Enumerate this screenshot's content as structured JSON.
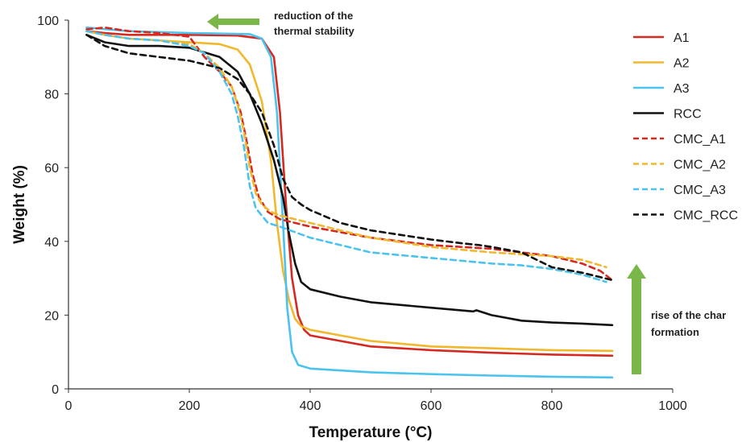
{
  "chart_data": {
    "type": "line",
    "title": "",
    "xlabel": "Temperature (°C)",
    "ylabel": "Weight (%)",
    "xlim": [
      0,
      1000
    ],
    "ylim": [
      0,
      100
    ],
    "xticks": [
      "0",
      "200",
      "400",
      "600",
      "800",
      "1000"
    ],
    "yticks": [
      "0",
      "20",
      "40",
      "60",
      "80",
      "100"
    ],
    "grid": false,
    "legend_position": "right",
    "series": [
      {
        "name": "A1",
        "color": "#d42a22",
        "dash": "solid",
        "x": [
          30,
          60,
          100,
          200,
          280,
          320,
          340,
          350,
          360,
          370,
          380,
          390,
          400,
          450,
          500,
          600,
          700,
          800,
          900
        ],
        "y": [
          97,
          96.5,
          96,
          96,
          95.8,
          95,
          90,
          75,
          50,
          30,
          20,
          16,
          14.5,
          13,
          11.5,
          10.5,
          9.8,
          9.3,
          9
        ]
      },
      {
        "name": "A2",
        "color": "#f2b82d",
        "dash": "solid",
        "x": [
          30,
          60,
          100,
          200,
          250,
          280,
          300,
          320,
          335,
          345,
          355,
          365,
          375,
          385,
          400,
          450,
          500,
          600,
          700,
          800,
          900
        ],
        "y": [
          97,
          96,
          95,
          94,
          93.5,
          92,
          88,
          78,
          62,
          45,
          32,
          24,
          19,
          17,
          16,
          14.5,
          13,
          11.5,
          11,
          10.5,
          10.3
        ]
      },
      {
        "name": "A3",
        "color": "#4cc3ef",
        "dash": "solid",
        "x": [
          30,
          100,
          200,
          300,
          320,
          335,
          345,
          355,
          362,
          370,
          380,
          400,
          500,
          600,
          700,
          800,
          900
        ],
        "y": [
          98,
          97,
          96.5,
          96.2,
          95,
          90,
          75,
          45,
          22,
          10,
          6.5,
          5.5,
          4.5,
          4,
          3.6,
          3.3,
          3.1
        ]
      },
      {
        "name": "RCC",
        "color": "#111111",
        "dash": "solid",
        "x": [
          30,
          60,
          100,
          150,
          200,
          250,
          280,
          300,
          320,
          340,
          355,
          365,
          375,
          385,
          400,
          450,
          500,
          600,
          670,
          675,
          700,
          750,
          800,
          850,
          900
        ],
        "y": [
          96,
          94,
          93,
          93,
          92.5,
          90,
          86,
          80,
          72,
          62,
          52,
          42,
          34,
          29,
          27,
          25,
          23.5,
          22,
          21,
          21.3,
          20,
          18.5,
          18,
          17.7,
          17.3
        ]
      },
      {
        "name": "CMC_A1",
        "color": "#d42a22",
        "dash": "dashed",
        "x": [
          30,
          60,
          100,
          150,
          200,
          225,
          250,
          270,
          285,
          295,
          305,
          315,
          330,
          350,
          400,
          450,
          500,
          600,
          700,
          750,
          800,
          850,
          880,
          900
        ],
        "y": [
          97.5,
          98,
          97,
          96.5,
          95.5,
          90,
          86,
          82,
          75,
          67,
          58,
          52,
          48,
          46,
          44,
          42.5,
          41,
          39,
          38,
          37,
          36,
          34,
          32,
          29.5
        ]
      },
      {
        "name": "CMC_A2",
        "color": "#f2b82d",
        "dash": "dashed",
        "x": [
          30,
          60,
          100,
          150,
          200,
          225,
          250,
          270,
          280,
          290,
          300,
          310,
          320,
          335,
          350,
          400,
          500,
          600,
          700,
          800,
          850,
          890
        ],
        "y": [
          97,
          96,
          95,
          94.5,
          93.5,
          91,
          87,
          82,
          77,
          70,
          60,
          53,
          50,
          48,
          47,
          45,
          41,
          38.5,
          37,
          36,
          35,
          33
        ]
      },
      {
        "name": "CMC_A3",
        "color": "#4cc3ef",
        "dash": "dashed",
        "x": [
          30,
          60,
          100,
          150,
          200,
          225,
          250,
          270,
          280,
          290,
          300,
          310,
          330,
          350,
          400,
          500,
          600,
          700,
          750,
          800,
          850,
          890
        ],
        "y": [
          97,
          96,
          95,
          94.5,
          93,
          91,
          86,
          80,
          74,
          66,
          55,
          49,
          45,
          44,
          41,
          37,
          35.5,
          34,
          33.5,
          32.5,
          31,
          29
        ]
      },
      {
        "name": "CMC_RCC",
        "color": "#111111",
        "dash": "dashed",
        "x": [
          30,
          60,
          100,
          150,
          200,
          250,
          280,
          300,
          320,
          340,
          355,
          370,
          385,
          400,
          450,
          500,
          600,
          650,
          680,
          700,
          750,
          800,
          850,
          900
        ],
        "y": [
          96,
          93,
          91,
          90,
          89,
          87,
          84,
          80,
          75,
          66,
          57,
          52,
          50,
          48.5,
          45,
          43,
          40.5,
          39.5,
          39,
          38.5,
          37,
          33,
          31.5,
          29.5
        ]
      }
    ],
    "annotations": [
      {
        "lines": [
          "reduction of the",
          "thermal stability"
        ],
        "arrow": "left",
        "color": "#7ab648"
      },
      {
        "lines": [
          "rise of the char",
          "formation"
        ],
        "arrow": "up",
        "color": "#7ab648"
      }
    ]
  }
}
